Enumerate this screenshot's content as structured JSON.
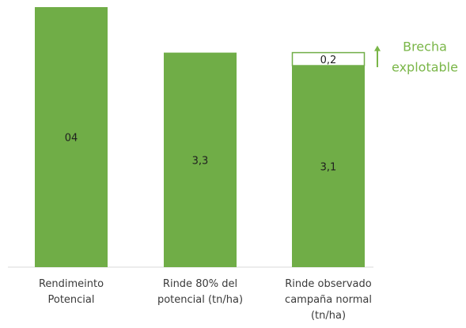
{
  "chart_data": {
    "type": "bar",
    "categories": [
      [
        "Rendimeinto",
        "Potencial"
      ],
      [
        "Rinde 80% del",
        "potencial (tn/ha)"
      ],
      [
        "Rinde observado",
        "campaña normal",
        "(tn/ha)"
      ]
    ],
    "series": [
      {
        "values": [
          4.0,
          3.3,
          3.1
        ]
      },
      {
        "values": [
          0,
          0,
          0.2
        ]
      }
    ],
    "data_labels": [
      "04",
      "3,3",
      "3,1",
      "0,2"
    ],
    "annotation": {
      "lines": [
        "Brecha",
        "explotable"
      ]
    },
    "ylim": [
      0,
      4.0
    ],
    "grid": false,
    "legend": "none",
    "stacked": true,
    "colors": {
      "bar": "#70ad47",
      "gap_fill": "#ffffff",
      "gap_border": "#70ad47",
      "annotation": "#7ab648",
      "axis": "#d9d9d9"
    }
  }
}
